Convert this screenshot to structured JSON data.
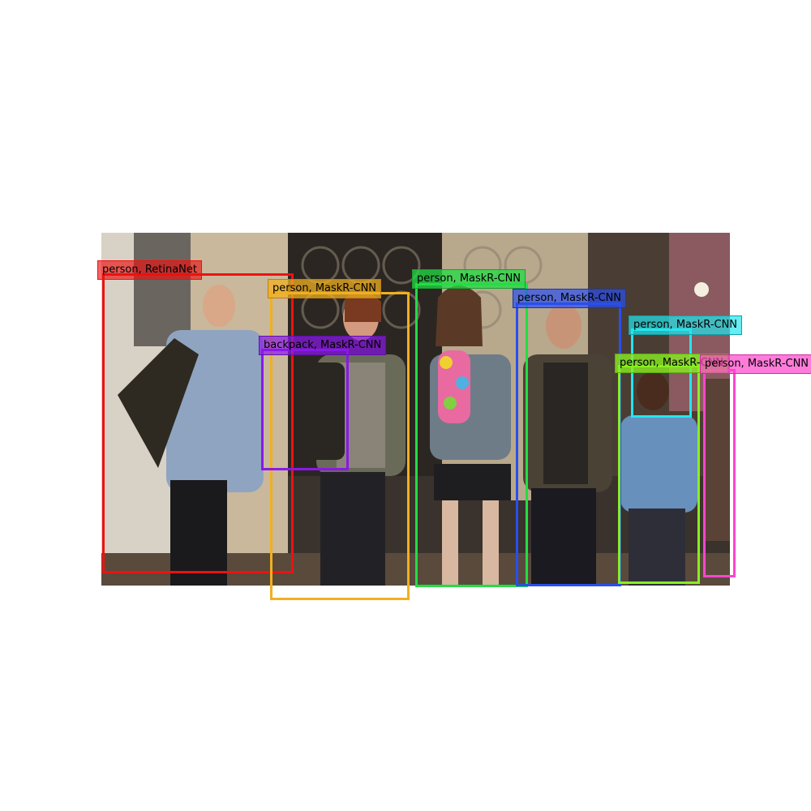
{
  "detections": [
    {
      "label": "person, RetinaNet",
      "color": "#ee1111"
    },
    {
      "label": "person, MaskR-CNN",
      "color": "#f0b020"
    },
    {
      "label": "backpack, MaskR-CNN",
      "color": "#8a18e8"
    },
    {
      "label": "person, MaskR-CNN",
      "color": "#22dd44"
    },
    {
      "label": "person, MaskR-CNN",
      "color": "#2a4ef0"
    },
    {
      "label": "person, MaskR-CNN",
      "color": "#22e6ee"
    },
    {
      "label": "person, MaskR-CNN",
      "color": "#88ee22"
    },
    {
      "label": "person, MaskR-CNN",
      "color": "#ff44cc"
    }
  ]
}
